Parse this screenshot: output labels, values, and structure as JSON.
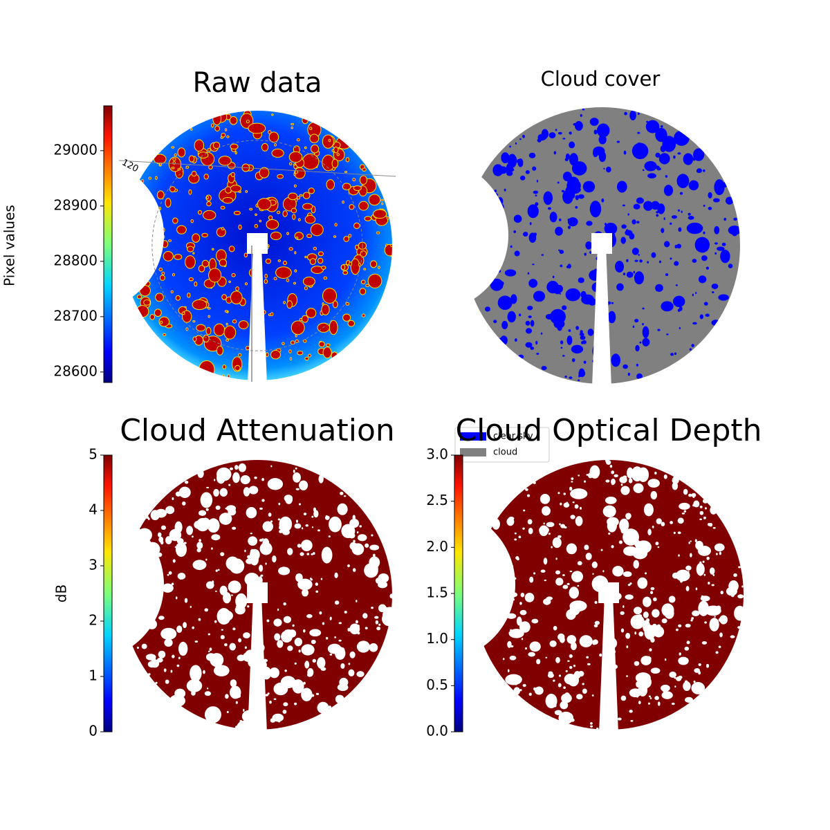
{
  "chart_data": [
    {
      "type": "image",
      "title": "Raw data",
      "ylabel": "Pixel values",
      "cmap": "jet",
      "ylim": [
        28581,
        29081
      ],
      "yticks": [
        28600,
        28700,
        28800,
        28900,
        29000
      ],
      "annotations": [
        "120"
      ]
    },
    {
      "type": "image",
      "title": "Cloud cover",
      "series": [
        {
          "name": "clear sky",
          "color": "#0000ff"
        },
        {
          "name": "cloud",
          "color": "#808080"
        }
      ]
    },
    {
      "type": "image",
      "title": "Cloud Attenuation",
      "ylabel": "dB",
      "cmap": "jet",
      "ylim": [
        0,
        5
      ],
      "yticks": [
        0,
        1,
        2,
        3,
        4,
        5
      ]
    },
    {
      "type": "image",
      "title": "Cloud Optical Depth",
      "cmap": "jet",
      "ylim": [
        0,
        3
      ],
      "yticks": [
        {
          "value": 0,
          "label": "0.0"
        },
        0.5,
        {
          "value": 1,
          "label": "1.0"
        },
        1.5,
        {
          "value": 2,
          "label": "2.0"
        },
        2.5,
        {
          "value": 3,
          "label": "3.0"
        }
      ]
    }
  ]
}
